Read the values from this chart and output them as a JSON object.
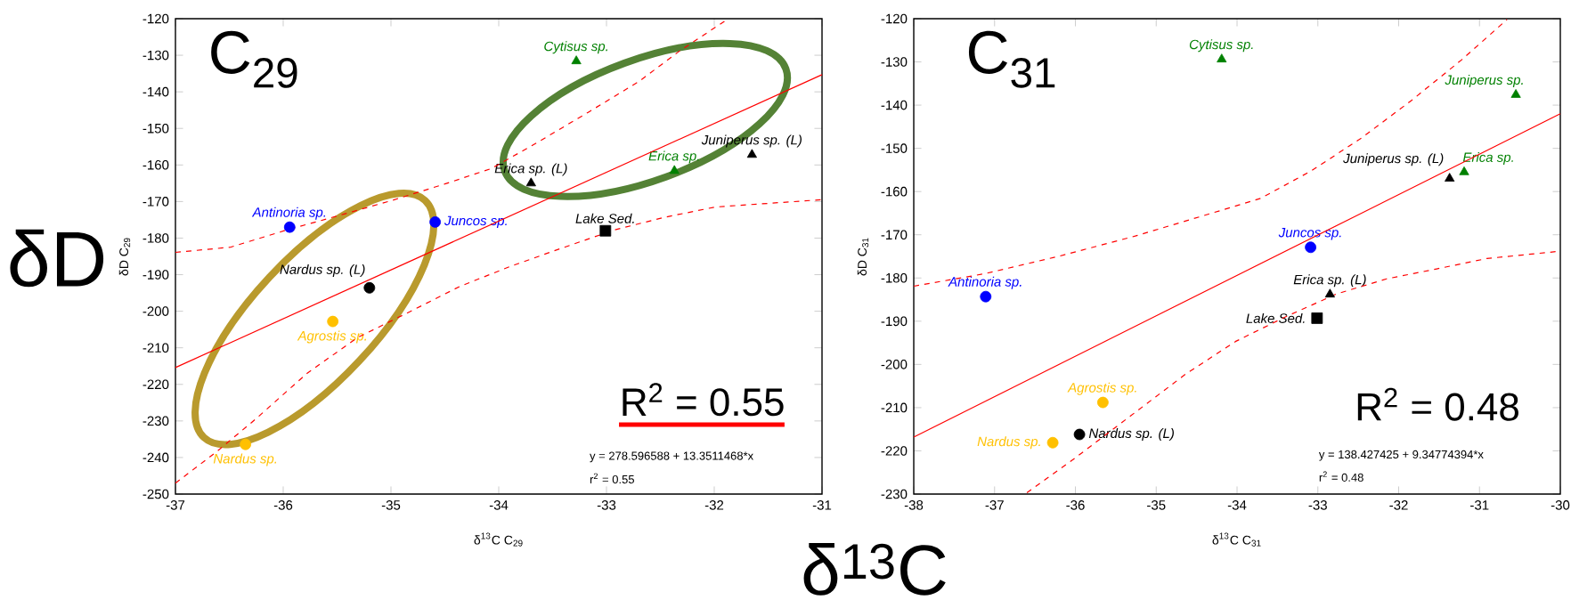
{
  "chart_data": [
    {
      "type": "scatter",
      "title": "C$_{29}$",
      "xlabel": "δ$^{13}$C C$_{29}$",
      "ylabel": "δD C$_{29}$",
      "xlim": [
        -37,
        -31
      ],
      "ylim": [
        -250,
        -120
      ],
      "xticks": [
        -37,
        -36,
        -35,
        -34,
        -33,
        -32,
        -31
      ],
      "yticks": [
        -250,
        -240,
        -230,
        -220,
        -210,
        -200,
        -190,
        -180,
        -170,
        -160,
        -150,
        -140,
        -130,
        -120
      ],
      "annotations": [
        "R$^{2}$ = 0.55",
        "y  = 278.596588 + 13.3511468*x",
        "r$^{2}$ = 0.55",
        "δD"
      ],
      "series": [
        {
          "name": "Antinoria sp.",
          "color": "#0000ff",
          "marker": "circle",
          "x": [
            -35.94
          ],
          "values": [
            -177.0
          ]
        },
        {
          "name": "Juncos sp.",
          "color": "#0000ff",
          "marker": "circle",
          "x": [
            -34.59
          ],
          "values": [
            -175.6
          ]
        },
        {
          "name": "Nardus sp. (L)",
          "color": "#000000",
          "marker": "circle",
          "x": [
            -35.2
          ],
          "values": [
            -193.6
          ]
        },
        {
          "name": "Agrostis sp.",
          "color": "#ffc000",
          "marker": "circle",
          "x": [
            -35.54
          ],
          "values": [
            -202.8
          ]
        },
        {
          "name": "Nardus sp.",
          "color": "#ffc000",
          "marker": "circle",
          "x": [
            -36.35
          ],
          "values": [
            -236.4
          ]
        },
        {
          "name": "Cytisus sp.",
          "color": "#008000",
          "marker": "triangle",
          "x": [
            -33.28
          ],
          "values": [
            -131.6
          ]
        },
        {
          "name": "Erica sp.",
          "color": "#008000",
          "marker": "triangle",
          "x": [
            -32.37
          ],
          "values": [
            -161.6
          ]
        },
        {
          "name": "Juniperus sp. (L)",
          "color": "#000000",
          "marker": "triangle",
          "x": [
            -31.65
          ],
          "values": [
            -157.2
          ]
        },
        {
          "name": "Erica sp. (L)",
          "color": "#000000",
          "marker": "triangle",
          "x": [
            -33.7
          ],
          "values": [
            -165.0
          ]
        },
        {
          "name": "Lake Sed.",
          "color": "#000000",
          "marker": "square",
          "x": [
            -33.01
          ],
          "values": [
            -178.0
          ]
        },
        {
          "type": "line",
          "color": "#ff0000",
          "line_style": "solid",
          "x": [
            -37,
            -31
          ],
          "values": [
            -215.4,
            -135.3
          ]
        },
        {
          "type": "line",
          "color": "#ff0000",
          "line_style": "dashed",
          "x": [
            -37,
            -36.49,
            -35.97,
            -35.54,
            -34.99,
            -34.5,
            -34.07,
            -33.65,
            -33.17,
            -32.7,
            -32.32,
            -31.89
          ],
          "values": [
            -183.9,
            -182.5,
            -177.8,
            -174.3,
            -169.7,
            -165.2,
            -161.0,
            -154.0,
            -145.6,
            -137.2,
            -128.8,
            -120.4
          ]
        },
        {
          "type": "line",
          "color": "#ff0000",
          "line_style": "dashed",
          "x": [
            -37,
            -36.63,
            -36.26,
            -35.78,
            -35.31,
            -34.83,
            -34.36,
            -33.88,
            -33.41,
            -32.93,
            -32.46,
            -31.99,
            -31
          ],
          "values": [
            -247.0,
            -238.7,
            -229.6,
            -217.0,
            -207.2,
            -200.2,
            -193.2,
            -187.6,
            -182.7,
            -177.8,
            -174.3,
            -171.5,
            -169.5
          ]
        }
      ]
    },
    {
      "type": "scatter",
      "title": "C$_{31}$",
      "xlabel": "δ$^{13}$C C$_{31}$",
      "ylabel": "δD C$_{31}$",
      "xlim": [
        -38,
        -30
      ],
      "ylim": [
        -230,
        -120
      ],
      "xticks": [
        -38,
        -37,
        -36,
        -35,
        -34,
        -33,
        -32,
        -31,
        -30
      ],
      "yticks": [
        -230,
        -220,
        -210,
        -200,
        -190,
        -180,
        -170,
        -160,
        -150,
        -140,
        -130,
        -120
      ],
      "annotations": [
        "R$^{2}$ = 0.48",
        "y  = 138.427425 + 9.34774394*x",
        "r$^{2}$ = 0.48",
        "δ$^{13}$C"
      ],
      "series": [
        {
          "name": "Cytisus sp.",
          "color": "#008000",
          "marker": "triangle",
          "x": [
            -34.19
          ],
          "values": [
            -129.4
          ]
        },
        {
          "name": "Juniperus sp.",
          "color": "#008000",
          "marker": "triangle",
          "x": [
            -30.55
          ],
          "values": [
            -137.6
          ]
        },
        {
          "name": "Erica sp.",
          "color": "#008000",
          "marker": "triangle",
          "x": [
            -31.19
          ],
          "values": [
            -155.5
          ]
        },
        {
          "name": "Juniperus sp. (L)",
          "color": "#000000",
          "marker": "triangle",
          "x": [
            -31.37
          ],
          "values": [
            -157.0
          ]
        },
        {
          "name": "Juncos sp.",
          "color": "#0000ff",
          "marker": "circle",
          "x": [
            -33.09
          ],
          "values": [
            -172.9
          ]
        },
        {
          "name": "Erica sp. (L)",
          "color": "#000000",
          "marker": "triangle",
          "x": [
            -32.85
          ],
          "values": [
            -183.8
          ]
        },
        {
          "name": "Lake Sed.",
          "color": "#000000",
          "marker": "square",
          "x": [
            -33.01
          ],
          "values": [
            -189.3
          ]
        },
        {
          "name": "Antinoria sp.",
          "color": "#0000ff",
          "marker": "circle",
          "x": [
            -37.11
          ],
          "values": [
            -184.3
          ]
        },
        {
          "name": "Agrostis sp.",
          "color": "#ffc000",
          "marker": "circle",
          "x": [
            -35.66
          ],
          "values": [
            -208.8
          ]
        },
        {
          "name": "Nardus sp. (L)",
          "color": "#000000",
          "marker": "circle",
          "x": [
            -35.95
          ],
          "values": [
            -216.2
          ]
        },
        {
          "name": "Nardus sp.",
          "color": "#ffc000",
          "marker": "circle",
          "x": [
            -36.28
          ],
          "values": [
            -218.1
          ]
        },
        {
          "type": "line",
          "color": "#ff0000",
          "line_style": "solid",
          "x": [
            -38,
            -30
          ],
          "values": [
            -216.8,
            -142.0
          ]
        },
        {
          "type": "line",
          "color": "#ff0000",
          "line_style": "dashed",
          "x": [
            -38,
            -37.12,
            -36.19,
            -35.26,
            -34.33,
            -33.71,
            -33.08,
            -32.46,
            -31.84,
            -31.22,
            -30.66
          ],
          "values": [
            -181.9,
            -179.0,
            -174.9,
            -170.3,
            -165.1,
            -161.6,
            -155.2,
            -147.6,
            -138.9,
            -129.5,
            -120.2
          ]
        },
        {
          "type": "line",
          "color": "#ff0000",
          "line_style": "dashed",
          "x": [
            -36.6,
            -36.0,
            -35.26,
            -34.64,
            -34.02,
            -33.39,
            -32.77,
            -32.15,
            -31.53,
            -30.91,
            -30
          ],
          "values": [
            -229.7,
            -221.6,
            -211.1,
            -202.3,
            -194.7,
            -188.9,
            -183.7,
            -180.2,
            -177.9,
            -175.5,
            -173.8
          ]
        }
      ]
    }
  ]
}
